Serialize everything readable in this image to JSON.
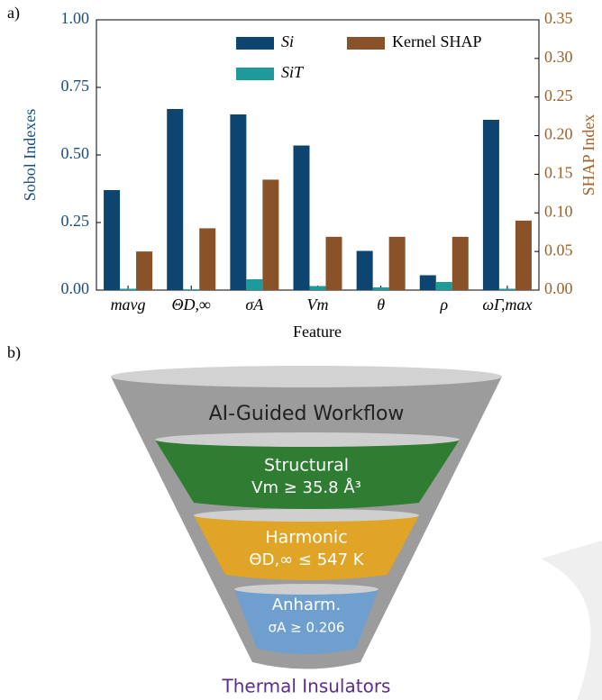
{
  "chart_data": {
    "type": "bar",
    "panel_label": "a)",
    "categories": [
      "mavg",
      "ΘD,∞",
      "σA",
      "Vm",
      "θ",
      "ρ",
      "ωΓ,max"
    ],
    "series": [
      {
        "name": "Si",
        "color": "#0e4470",
        "values": [
          0.37,
          0.67,
          0.65,
          0.535,
          0.145,
          0.055,
          0.63
        ]
      },
      {
        "name": "SiT",
        "color": "#1f9a9a",
        "values": [
          0.005,
          0.003,
          0.04,
          0.015,
          0.01,
          0.03,
          0.005
        ]
      },
      {
        "name": "Kernel SHAP",
        "color": "#8a5228",
        "axis": "y2",
        "values": [
          0.05,
          0.08,
          0.143,
          0.069,
          0.069,
          0.069,
          0.09
        ]
      }
    ],
    "ylabel": "Sobol Indexes",
    "y2label": "SHAP Index",
    "xlabel": "Feature",
    "ylim": [
      0,
      1
    ],
    "yticks": [
      {
        "value": 0,
        "label": "0.00"
      },
      0.25,
      {
        "value": 0.5,
        "label": "0.50"
      },
      0.75,
      {
        "value": 1,
        "label": "1.00"
      }
    ],
    "y2lim": [
      0,
      0.35
    ],
    "y2ticks": [
      {
        "value": 0,
        "label": "0.00"
      },
      0.05,
      {
        "value": 0.1,
        "label": "0.10"
      },
      0.15,
      {
        "value": 0.2,
        "label": "0.20"
      },
      0.25,
      {
        "value": 0.3,
        "label": "0.30"
      },
      0.35
    ],
    "ycolor": "#1a4f7a",
    "y2color": "#a0612a"
  },
  "diagram": {
    "panel_label": "b)",
    "title": "AI-Guided Workflow",
    "stages": [
      {
        "label": "Structural",
        "criterion": "Vm ≥ 35.8 Å³"
      },
      {
        "label": "Harmonic",
        "criterion": "ΘD,∞ ≤ 547 K"
      },
      {
        "label": "Anharm.",
        "criterion": "σA ≥ 0.206"
      }
    ],
    "output": "Thermal Insulators"
  }
}
